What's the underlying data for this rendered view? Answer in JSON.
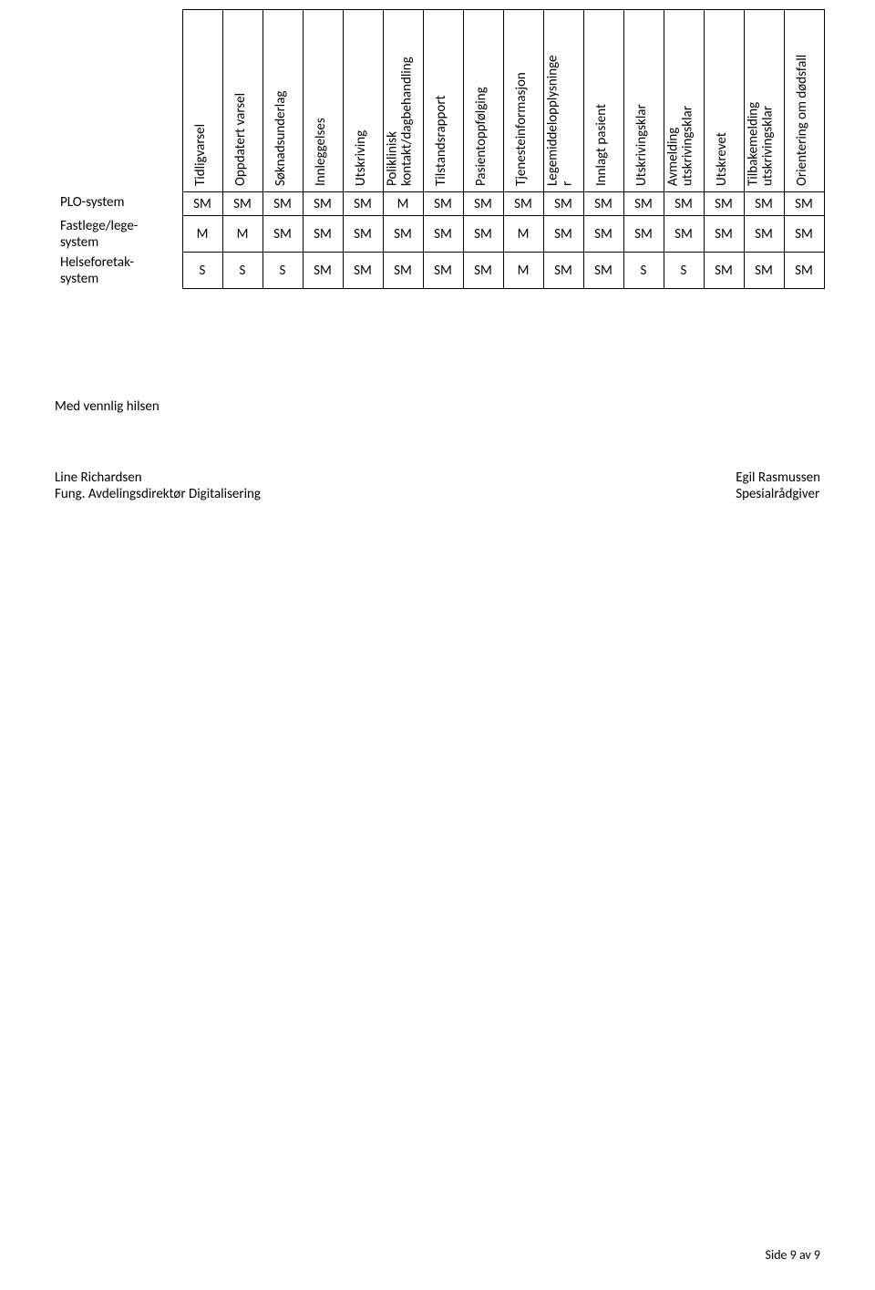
{
  "table": {
    "columns": [
      {
        "label": "Tidligvarsel",
        "sub": ""
      },
      {
        "label": "Oppdatert varsel",
        "sub": ""
      },
      {
        "label": "Søknadsunderlag",
        "sub": ""
      },
      {
        "label": "Innleggelses",
        "sub": ""
      },
      {
        "label": "Utskriving",
        "sub": ""
      },
      {
        "label": "Poliklinisk",
        "sub": "kontakt/dagbehandling"
      },
      {
        "label": "Tilstandsrapport",
        "sub": ""
      },
      {
        "label": "Pasientoppfølging",
        "sub": ""
      },
      {
        "label": "Tjenesteinformasjon",
        "sub": ""
      },
      {
        "label": "Legemiddelopplysninge",
        "sub": "r"
      },
      {
        "label": "Innlagt pasient",
        "sub": ""
      },
      {
        "label": "Utskrivingsklar",
        "sub": ""
      },
      {
        "label": "Avmelding",
        "sub": "utskrivingsklar"
      },
      {
        "label": "Utskrevet",
        "sub": ""
      },
      {
        "label": "Tilbakemelding",
        "sub": "utskrivingsklar"
      },
      {
        "label": "Orientering om dødsfall",
        "sub": ""
      }
    ],
    "rows": [
      {
        "label": "PLO-system",
        "cells": [
          "SM",
          "SM",
          "SM",
          "SM",
          "SM",
          "M",
          "SM",
          "SM",
          "SM",
          "SM",
          "SM",
          "SM",
          "SM",
          "SM",
          "SM",
          "SM"
        ]
      },
      {
        "label": "Fastlege/lege-system",
        "cells": [
          "M",
          "M",
          "SM",
          "SM",
          "SM",
          "SM",
          "SM",
          "SM",
          "M",
          "SM",
          "SM",
          "SM",
          "SM",
          "SM",
          "SM",
          "SM"
        ]
      },
      {
        "label": "Helseforetak-system",
        "cells": [
          "S",
          "S",
          "S",
          "SM",
          "SM",
          "SM",
          "SM",
          "SM",
          "M",
          "SM",
          "SM",
          "S",
          "S",
          "SM",
          "SM",
          "SM"
        ]
      }
    ]
  },
  "closing": "Med vennlig hilsen",
  "signatures": {
    "left_name": "Line Richardsen",
    "left_title": "Fung. Avdelingsdirektør Digitalisering",
    "right_name": "Egil Rasmussen",
    "right_title": "Spesialrådgiver"
  },
  "footer": "Side 9 av 9"
}
